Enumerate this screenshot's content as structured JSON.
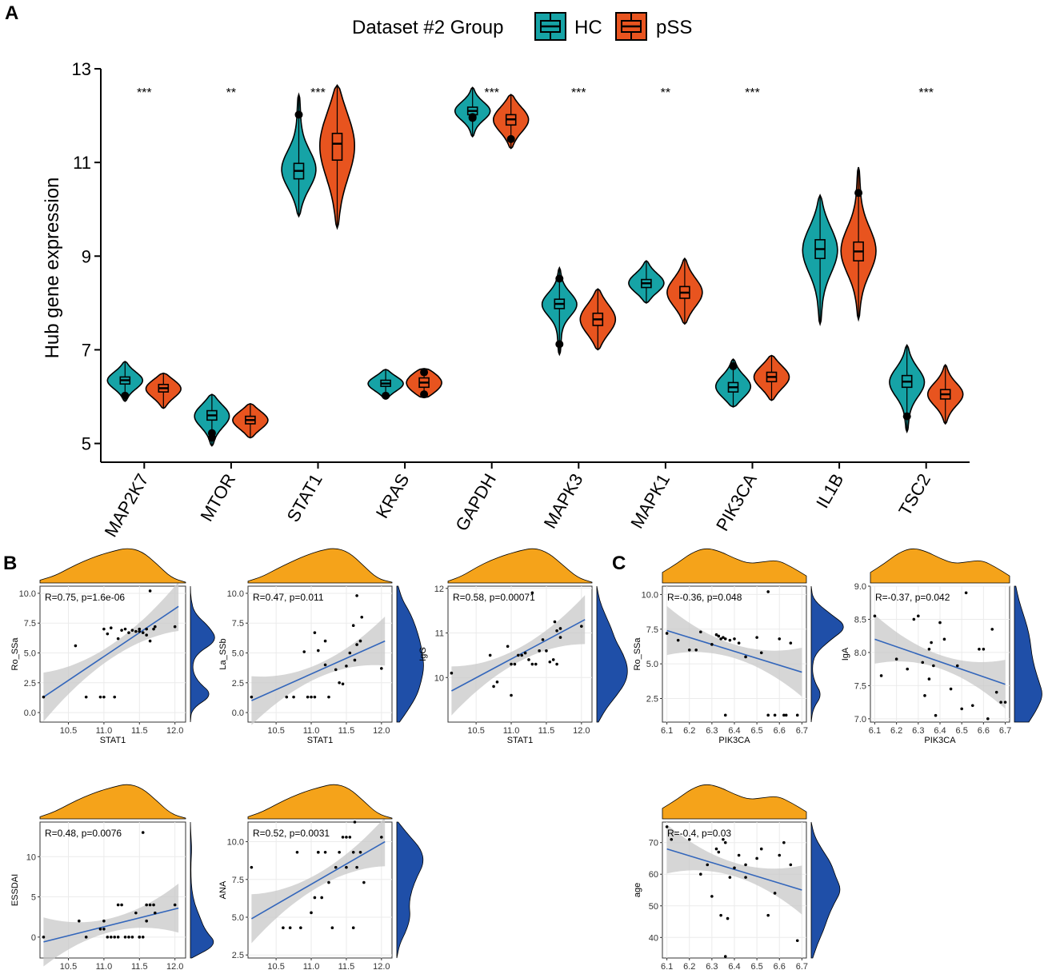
{
  "chart_data": [
    {
      "panel": "A",
      "type": "violin",
      "ylabel": "Hub gene expression",
      "ylim": [
        4.6,
        13
      ],
      "yticks": [
        5,
        7,
        9,
        11,
        13
      ],
      "legend": {
        "title": "Dataset #2  Group",
        "entries": [
          {
            "name": "HC",
            "color": "#16a3a6"
          },
          {
            "name": "pSS",
            "color": "#e8541f"
          }
        ]
      },
      "categories": [
        "MAP2K7",
        "MTOR",
        "STAT1",
        "KRAS",
        "GAPDH",
        "MAPK3",
        "MAPK1",
        "PIK3CA",
        "IL1B",
        "TSC2"
      ],
      "significance": [
        "***",
        "**",
        "***",
        "",
        "***",
        "***",
        "**",
        "***",
        "",
        "***"
      ],
      "series": [
        {
          "name": "HC",
          "min": [
            5.9,
            4.95,
            9.85,
            5.95,
            11.55,
            6.9,
            8.0,
            5.78,
            7.55,
            5.25
          ],
          "max": [
            6.75,
            6.05,
            12.45,
            6.58,
            12.6,
            8.75,
            8.9,
            6.8,
            10.3,
            7.1
          ],
          "q1": [
            6.27,
            5.5,
            10.65,
            6.22,
            12.02,
            7.88,
            8.33,
            6.1,
            8.95,
            6.2
          ],
          "median": [
            6.35,
            5.6,
            10.82,
            6.28,
            12.1,
            7.98,
            8.42,
            6.2,
            9.15,
            6.32
          ],
          "q3": [
            6.42,
            5.7,
            10.98,
            6.35,
            12.18,
            8.08,
            8.5,
            6.3,
            9.35,
            6.45
          ],
          "outliers": [
            [
              6.02
            ],
            [
              5.22,
              5.12
            ],
            [
              12.02
            ],
            [
              6.02
            ],
            [
              11.97,
              11.95
            ],
            [
              8.52,
              7.12
            ],
            [],
            [
              6.65
            ],
            [],
            [
              5.58
            ]
          ]
        },
        {
          "name": "pSS",
          "min": [
            5.75,
            5.12,
            9.6,
            5.98,
            11.3,
            7.0,
            7.55,
            5.92,
            7.65,
            5.42
          ],
          "max": [
            6.5,
            5.85,
            12.65,
            6.6,
            12.45,
            8.3,
            8.95,
            6.88,
            10.9,
            6.68
          ],
          "q1": [
            6.1,
            5.42,
            11.05,
            6.2,
            11.8,
            7.52,
            8.1,
            6.32,
            8.9,
            5.95
          ],
          "median": [
            6.18,
            5.5,
            11.4,
            6.3,
            11.92,
            7.65,
            8.22,
            6.42,
            9.1,
            6.05
          ],
          "q3": [
            6.26,
            5.58,
            11.62,
            6.4,
            12.02,
            7.78,
            8.35,
            6.52,
            9.3,
            6.15
          ],
          "outliers": [
            [],
            [],
            [],
            [
              6.52,
              6.05
            ],
            [
              11.5
            ],
            [],
            [],
            [],
            [
              10.35
            ],
            []
          ]
        }
      ]
    },
    {
      "panel": "B",
      "type": "scatter",
      "xlabel": "STAT1",
      "ylabel": "Ro_SSa",
      "stat": "R=0.75, p=1.6e-06",
      "xlim": [
        10.1,
        12.15
      ],
      "ylim": [
        -0.8,
        10.6
      ],
      "xticks": [
        "10.5",
        "11.0",
        "11.5",
        "12.0"
      ],
      "yticks": [
        "0.0",
        "2.5",
        "5.0",
        "7.5",
        "10.0"
      ],
      "fit": {
        "x": [
          10.15,
          12.05
        ],
        "y": [
          1.3,
          8.9
        ]
      },
      "x": [
        10.15,
        10.6,
        10.75,
        10.95,
        11.0,
        11.15,
        11.0,
        11.05,
        11.1,
        11.2,
        11.25,
        11.3,
        11.35,
        11.4,
        11.45,
        11.5,
        11.55,
        11.6,
        11.65,
        11.7,
        11.65,
        11.72,
        12.0,
        11.6,
        11.5
      ],
      "y": [
        1.3,
        5.6,
        1.3,
        1.3,
        1.3,
        1.3,
        7.0,
        6.6,
        7.1,
        6.2,
        6.9,
        7.0,
        6.7,
        6.9,
        6.8,
        7.0,
        6.7,
        7.0,
        6.0,
        7.0,
        10.2,
        7.2,
        7.2,
        6.5,
        6.8
      ],
      "top_density": [
        0.08,
        0.2,
        0.42,
        0.62,
        0.78,
        0.9,
        1.0,
        0.9,
        0.55,
        0.15,
        0.02
      ],
      "right_density": [
        0.0,
        0.05,
        0.85,
        0.25,
        0.05,
        0.2,
        1.0,
        0.7,
        0.15,
        0.02,
        0.0
      ]
    },
    {
      "panel": "B",
      "type": "scatter",
      "xlabel": "STAT1",
      "ylabel": "La_SSb",
      "stat": "R=0.47, p=0.011",
      "xlim": [
        10.1,
        12.15
      ],
      "ylim": [
        -0.8,
        10.6
      ],
      "xticks": [
        "10.5",
        "11.0",
        "11.5",
        "12.0"
      ],
      "yticks": [
        "0.0",
        "2.5",
        "5.0",
        "7.5",
        "10.0"
      ],
      "fit": {
        "x": [
          10.15,
          12.05
        ],
        "y": [
          1.0,
          6.0
        ]
      },
      "x": [
        10.15,
        10.65,
        10.75,
        10.95,
        11.0,
        11.05,
        11.05,
        11.1,
        11.2,
        11.25,
        11.35,
        11.4,
        11.45,
        11.5,
        11.55,
        11.6,
        11.62,
        11.65,
        11.65,
        11.7,
        11.72,
        12.0,
        11.2,
        10.9
      ],
      "y": [
        1.3,
        1.3,
        1.3,
        1.3,
        1.3,
        1.3,
        6.7,
        5.2,
        6.0,
        1.3,
        3.6,
        2.5,
        2.4,
        3.9,
        5.0,
        7.3,
        4.4,
        9.8,
        5.7,
        6.0,
        8.0,
        3.7,
        4.0,
        5.1
      ],
      "top_density": [
        0.05,
        0.18,
        0.4,
        0.6,
        0.78,
        0.92,
        1.0,
        0.88,
        0.5,
        0.12,
        0.02
      ],
      "right_density": [
        0.1,
        0.45,
        0.75,
        0.9,
        1.0,
        0.95,
        0.85,
        0.7,
        0.5,
        0.2,
        0.05
      ]
    },
    {
      "panel": "B",
      "type": "scatter",
      "xlabel": "STAT1",
      "ylabel": "IgG",
      "stat": "R=0.58, p=0.00071",
      "xlim": [
        10.1,
        12.15
      ],
      "ylim": [
        9.0,
        12.05
      ],
      "xticks": [
        "10.5",
        "11.0",
        "11.5",
        "12.0"
      ],
      "yticks": [
        "10",
        "11",
        "12"
      ],
      "fit": {
        "x": [
          10.15,
          12.05
        ],
        "y": [
          9.7,
          11.3
        ]
      },
      "x": [
        10.15,
        10.7,
        10.75,
        10.8,
        10.95,
        11.0,
        11.0,
        11.05,
        11.1,
        11.15,
        11.2,
        11.25,
        11.3,
        11.35,
        11.4,
        11.45,
        11.5,
        11.55,
        11.6,
        11.62,
        11.65,
        11.65,
        11.7,
        11.7,
        12.0,
        11.3
      ],
      "y": [
        10.1,
        10.5,
        9.8,
        9.9,
        10.7,
        9.6,
        10.3,
        10.3,
        10.5,
        10.5,
        10.55,
        10.4,
        10.3,
        10.3,
        10.6,
        10.85,
        10.6,
        10.35,
        10.4,
        11.25,
        11.05,
        10.3,
        11.1,
        10.9,
        11.15,
        11.9
      ],
      "top_density": [
        0.05,
        0.2,
        0.45,
        0.65,
        0.8,
        0.92,
        1.0,
        0.85,
        0.5,
        0.15,
        0.02
      ],
      "right_density": [
        0.05,
        0.3,
        0.65,
        0.95,
        1.0,
        0.85,
        0.6,
        0.45,
        0.25,
        0.08,
        0.0
      ]
    },
    {
      "panel": "B",
      "type": "scatter",
      "xlabel": "STAT1",
      "ylabel": "ESSDAI",
      "stat": "R=0.48, p=0.0076",
      "xlim": [
        10.1,
        12.15
      ],
      "ylim": [
        -2.6,
        14.3
      ],
      "xticks": [
        "10.5",
        "11.0",
        "11.5",
        "12.0"
      ],
      "yticks": [
        "0",
        "5",
        "10"
      ],
      "fit": {
        "x": [
          10.15,
          12.05
        ],
        "y": [
          -0.6,
          3.6
        ]
      },
      "x": [
        10.15,
        10.65,
        10.75,
        10.95,
        11.0,
        11.05,
        11.1,
        11.15,
        11.2,
        11.25,
        11.3,
        11.35,
        11.4,
        11.45,
        11.5,
        11.55,
        11.6,
        11.65,
        11.7,
        11.72,
        11.55,
        11.5,
        11.0,
        11.2,
        12.0,
        11.6
      ],
      "y": [
        0.0,
        2.0,
        0.0,
        1.0,
        2.0,
        0.0,
        0.0,
        0.0,
        4.0,
        4.0,
        0.0,
        0.0,
        0.0,
        3.0,
        0.0,
        13.0,
        4.0,
        4.0,
        4.0,
        3.0,
        0.0,
        0.0,
        1.0,
        0.0,
        4.0,
        2.0
      ],
      "top_density": [
        0.06,
        0.2,
        0.42,
        0.62,
        0.78,
        0.9,
        1.0,
        0.88,
        0.52,
        0.14,
        0.02
      ],
      "right_density": [
        0.05,
        1.0,
        0.55,
        0.35,
        0.15,
        0.05,
        0.02,
        0.02,
        0.05,
        0.02,
        0.0
      ]
    },
    {
      "panel": "B",
      "type": "scatter",
      "xlabel": "STAT1",
      "ylabel": "ANA",
      "stat": "R=0.52, p=0.0031",
      "xlim": [
        10.1,
        12.15
      ],
      "ylim": [
        2.3,
        11.3
      ],
      "xticks": [
        "10.5",
        "11.0",
        "11.5",
        "12.0"
      ],
      "yticks": [
        "2.5",
        "5.0",
        "7.5",
        "10.0"
      ],
      "fit": {
        "x": [
          10.15,
          12.05
        ],
        "y": [
          4.9,
          10.0
        ]
      },
      "x": [
        10.15,
        10.6,
        10.7,
        10.8,
        10.85,
        11.0,
        11.05,
        11.1,
        11.15,
        11.2,
        11.25,
        11.3,
        11.35,
        11.4,
        11.45,
        11.5,
        11.55,
        11.6,
        11.62,
        11.65,
        11.7,
        11.75,
        12.0,
        11.6,
        11.1,
        11.5
      ],
      "y": [
        8.3,
        4.3,
        4.3,
        9.3,
        4.3,
        5.3,
        6.3,
        9.3,
        6.3,
        9.3,
        7.3,
        4.3,
        8.3,
        9.3,
        10.3,
        8.3,
        10.3,
        9.3,
        11.3,
        8.3,
        9.3,
        7.3,
        10.3,
        4.3,
        9.3,
        10.3
      ],
      "top_density": [
        0.06,
        0.2,
        0.42,
        0.62,
        0.78,
        0.9,
        1.0,
        0.88,
        0.52,
        0.14,
        0.02
      ],
      "right_density": [
        0.0,
        0.1,
        0.35,
        0.5,
        0.45,
        0.55,
        0.75,
        1.0,
        0.9,
        0.45,
        0.05
      ]
    },
    {
      "panel": "C",
      "type": "scatter",
      "xlabel": "PIK3CA",
      "ylabel": "Ro_SSa",
      "stat": "R=-0.36, p=0.048",
      "xlim": [
        6.08,
        6.72
      ],
      "ylim": [
        0.8,
        10.6
      ],
      "xticks": [
        "6.1",
        "6.2",
        "6.3",
        "6.4",
        "6.5",
        "6.6",
        "6.7"
      ],
      "yticks": [
        "2.5",
        "5.0",
        "7.5",
        "10.0"
      ],
      "fit": {
        "x": [
          6.1,
          6.7
        ],
        "y": [
          7.4,
          4.4
        ]
      },
      "x": [
        6.1,
        6.15,
        6.2,
        6.23,
        6.25,
        6.3,
        6.32,
        6.33,
        6.34,
        6.35,
        6.36,
        6.36,
        6.38,
        6.4,
        6.42,
        6.45,
        6.5,
        6.52,
        6.55,
        6.58,
        6.6,
        6.62,
        6.63,
        6.65,
        6.68,
        6.55
      ],
      "y": [
        7.2,
        6.7,
        6.0,
        6.0,
        7.3,
        6.4,
        7.1,
        7.0,
        6.8,
        6.9,
        6.8,
        1.3,
        6.7,
        6.8,
        6.5,
        5.5,
        6.9,
        5.8,
        10.2,
        1.3,
        6.8,
        1.3,
        1.3,
        6.5,
        1.3,
        1.3
      ],
      "top_density": [
        0.3,
        0.55,
        0.85,
        1.0,
        0.9,
        0.7,
        0.55,
        0.6,
        0.65,
        0.45,
        0.2
      ],
      "right_density": [
        0.0,
        0.05,
        0.3,
        0.08,
        0.02,
        0.1,
        0.5,
        1.0,
        0.5,
        0.05,
        0.0
      ]
    },
    {
      "panel": "C",
      "type": "scatter",
      "xlabel": "PIK3CA",
      "ylabel": "IgA",
      "stat": "R=-0.37, p=0.042",
      "xlim": [
        6.08,
        6.72
      ],
      "ylim": [
        6.95,
        9.0
      ],
      "xticks": [
        "6.1",
        "6.2",
        "6.3",
        "6.4",
        "6.5",
        "6.6",
        "6.7"
      ],
      "yticks": [
        "7.0",
        "7.5",
        "8.0",
        "8.5",
        "9.0"
      ],
      "fit": {
        "x": [
          6.1,
          6.7
        ],
        "y": [
          8.2,
          7.52
        ]
      },
      "x": [
        6.1,
        6.13,
        6.2,
        6.25,
        6.28,
        6.3,
        6.32,
        6.33,
        6.35,
        6.36,
        6.37,
        6.38,
        6.4,
        6.42,
        6.45,
        6.48,
        6.5,
        6.52,
        6.55,
        6.58,
        6.6,
        6.62,
        6.64,
        6.66,
        6.68,
        6.7,
        6.35
      ],
      "y": [
        8.55,
        7.65,
        7.9,
        7.75,
        8.5,
        8.55,
        7.85,
        7.35,
        8.05,
        8.15,
        7.8,
        7.05,
        8.45,
        8.2,
        7.45,
        7.8,
        7.15,
        8.9,
        7.2,
        8.05,
        8.05,
        7.0,
        8.35,
        7.4,
        7.25,
        7.25,
        7.6
      ],
      "top_density": [
        0.3,
        0.55,
        0.85,
        1.0,
        0.9,
        0.7,
        0.55,
        0.6,
        0.65,
        0.45,
        0.2
      ],
      "right_density": [
        0.5,
        0.8,
        1.0,
        0.85,
        0.7,
        0.6,
        0.55,
        0.45,
        0.3,
        0.15,
        0.05
      ]
    },
    {
      "panel": "C",
      "type": "scatter",
      "xlabel": "PIK3CA",
      "ylabel": "age",
      "stat": "R=-0.4, p=0.03",
      "xlim": [
        6.08,
        6.72
      ],
      "ylim": [
        33.5,
        76.5
      ],
      "xticks": [
        "6.1",
        "6.2",
        "6.3",
        "6.4",
        "6.5",
        "6.6",
        "6.7"
      ],
      "yticks": [
        "40",
        "50",
        "60",
        "70"
      ],
      "fit": {
        "x": [
          6.1,
          6.7
        ],
        "y": [
          68,
          55
        ]
      },
      "x": [
        6.1,
        6.12,
        6.2,
        6.25,
        6.3,
        6.32,
        6.33,
        6.34,
        6.35,
        6.36,
        6.37,
        6.38,
        6.4,
        6.42,
        6.45,
        6.5,
        6.52,
        6.55,
        6.6,
        6.62,
        6.65,
        6.68,
        6.28,
        6.45,
        6.58,
        6.36
      ],
      "y": [
        75,
        71,
        71,
        60,
        53,
        68,
        67,
        47,
        71,
        70,
        46,
        59,
        62,
        66,
        59,
        65,
        68,
        47,
        66,
        70,
        63,
        39,
        63,
        63,
        54,
        34
      ],
      "top_density": [
        0.3,
        0.55,
        0.85,
        1.0,
        0.9,
        0.7,
        0.55,
        0.6,
        0.65,
        0.45,
        0.2
      ],
      "right_density": [
        0.05,
        0.2,
        0.4,
        0.55,
        0.75,
        1.0,
        0.8,
        0.65,
        0.35,
        0.1,
        0.0
      ]
    }
  ],
  "panels": [
    "A",
    "B",
    "C"
  ],
  "colors": {
    "hc": "#16a3a6",
    "pss": "#e8541f",
    "density_top": "#f5a31a",
    "density_right": "#1f4fa8",
    "fit_line": "#3366bb",
    "ci_band": "#c8c8c8",
    "grid": "#ebebeb"
  }
}
